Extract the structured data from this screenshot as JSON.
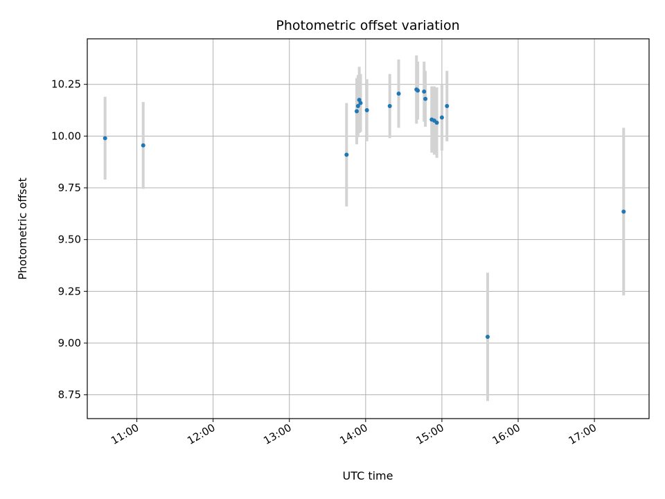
{
  "chart_data": {
    "type": "scatter",
    "title": "Photometric offset variation",
    "xlabel": "UTC time",
    "ylabel": "Photometric offset",
    "x_axis_type": "time",
    "xlim": [
      "10:21",
      "17:43"
    ],
    "ylim": [
      8.635,
      10.47
    ],
    "x_ticks": [
      "11:00",
      "12:00",
      "13:00",
      "14:00",
      "15:00",
      "16:00",
      "17:00"
    ],
    "y_ticks": [
      "8.75",
      "9.00",
      "9.25",
      "9.50",
      "9.75",
      "10.00",
      "10.25"
    ],
    "grid": true,
    "legend": "none",
    "point_color": "#1f77b4",
    "errorbar_color": "#d3d3d3",
    "points": [
      {
        "x": "10:35",
        "y": 9.99,
        "yerr": 0.2
      },
      {
        "x": "11:05",
        "y": 9.955,
        "yerr": 0.21
      },
      {
        "x": "13:45",
        "y": 9.91,
        "yerr": 0.25
      },
      {
        "x": "13:53",
        "y": 10.12,
        "yerr": 0.16
      },
      {
        "x": "13:54",
        "y": 10.145,
        "yerr": 0.15
      },
      {
        "x": "13:55",
        "y": 10.175,
        "yerr": 0.16
      },
      {
        "x": "13:56",
        "y": 10.16,
        "yerr": 0.14
      },
      {
        "x": "14:01",
        "y": 10.125,
        "yerr": 0.15
      },
      {
        "x": "14:19",
        "y": 10.145,
        "yerr": 0.155
      },
      {
        "x": "14:26",
        "y": 10.205,
        "yerr": 0.165
      },
      {
        "x": "14:40",
        "y": 10.225,
        "yerr": 0.165
      },
      {
        "x": "14:41",
        "y": 10.22,
        "yerr": 0.14
      },
      {
        "x": "14:46",
        "y": 10.215,
        "yerr": 0.145
      },
      {
        "x": "14:47",
        "y": 10.18,
        "yerr": 0.135
      },
      {
        "x": "14:52",
        "y": 10.08,
        "yerr": 0.16
      },
      {
        "x": "14:54",
        "y": 10.075,
        "yerr": 0.165
      },
      {
        "x": "14:56",
        "y": 10.065,
        "yerr": 0.17
      },
      {
        "x": "15:00",
        "y": 10.09,
        "yerr": 0.16
      },
      {
        "x": "15:04",
        "y": 10.145,
        "yerr": 0.17
      },
      {
        "x": "15:36",
        "y": 9.03,
        "yerr": 0.31
      },
      {
        "x": "17:23",
        "y": 9.635,
        "yerr": 0.405
      }
    ]
  }
}
